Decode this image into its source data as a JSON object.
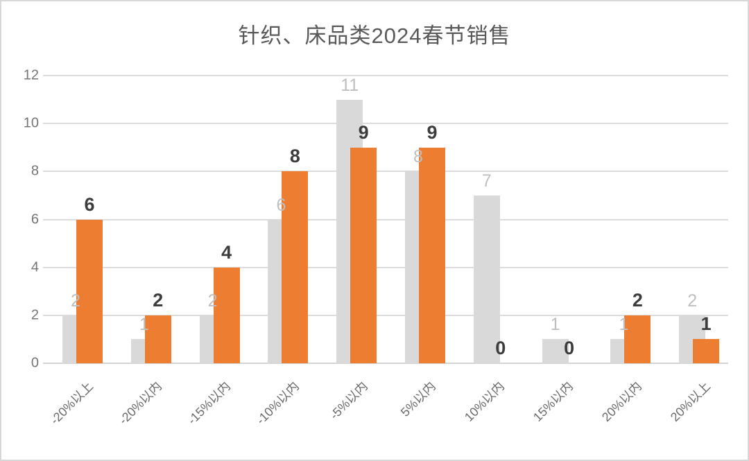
{
  "chart_data": {
    "type": "bar",
    "title": "针织、床品类2024春节销售",
    "categories": [
      "-20%以上",
      "-20%以内",
      "-15%以内",
      "-10%以内",
      "-5%以内",
      "5%以内",
      "10%以内",
      "15%以内",
      "20%以内",
      "20%以上"
    ],
    "series": [
      {
        "name": "",
        "color": "#d9d9d9",
        "label_color": "#bfbfbf",
        "label_bold": false,
        "values": [
          2,
          1,
          2,
          6,
          11,
          8,
          7,
          1,
          1,
          2
        ]
      },
      {
        "name": "",
        "color": "#ed7d31",
        "label_color": "#3d3d3d",
        "label_bold": true,
        "values": [
          6,
          2,
          4,
          8,
          9,
          9,
          0,
          0,
          2,
          1
        ]
      }
    ],
    "xlabel": "",
    "ylabel": "",
    "ylim": [
      0,
      12
    ],
    "yticks": [
      0,
      2,
      4,
      6,
      8,
      10,
      12
    ],
    "grid": true,
    "legend_position": "none",
    "data_labels": true
  },
  "style": {
    "title_color": "#595959",
    "axis_tick_color": "#757575",
    "gridline_color": "#dcdcdc",
    "frame_border_color": "#d7d7d7",
    "background": "#ffffff"
  }
}
